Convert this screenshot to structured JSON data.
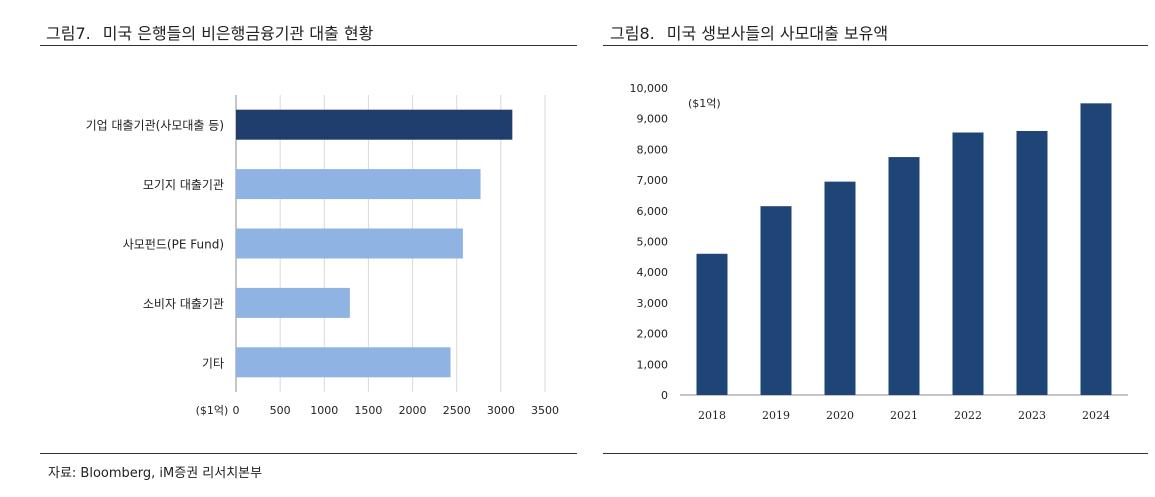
{
  "figure7": {
    "label": "그림7.",
    "title": "미국 은행들의 비은행금융기관 대출 현황"
  },
  "figure8": {
    "label": "그림8.",
    "title": "미국 생보사들의 사모대출 보유액"
  },
  "source_note": "자료: Bloomberg, iM증권 리서치본부",
  "chart_data": [
    {
      "type": "bar",
      "orientation": "horizontal",
      "categories": [
        "기업 대출기관(사모대출 등)",
        "모기지 대출기관",
        "사모펀드(PE Fund)",
        "소비자 대출기관",
        "기타"
      ],
      "values": [
        3130,
        2770,
        2570,
        1290,
        2430
      ],
      "colors": [
        "#1f3e6e",
        "#8fb4e3",
        "#8fb4e3",
        "#8fb4e3",
        "#8fb4e3"
      ],
      "xlim": [
        0,
        3500
      ],
      "xticks": [
        0,
        500,
        1000,
        1500,
        2000,
        2500,
        3000,
        3500
      ],
      "unit_label": "($1억)",
      "grid": "vertical"
    },
    {
      "type": "bar",
      "orientation": "vertical",
      "categories": [
        "2018",
        "2019",
        "2020",
        "2021",
        "2022",
        "2023",
        "2024"
      ],
      "values": [
        4600,
        6150,
        6950,
        7750,
        8550,
        8600,
        9500
      ],
      "color": "#1f4476",
      "ylim": [
        0,
        10000
      ],
      "yticks": [
        "0",
        "1,000",
        "2,000",
        "3,000",
        "4,000",
        "5,000",
        "6,000",
        "7,000",
        "8,000",
        "9,000",
        "10,000"
      ],
      "unit_label": "($1억)",
      "grid": "none"
    }
  ]
}
